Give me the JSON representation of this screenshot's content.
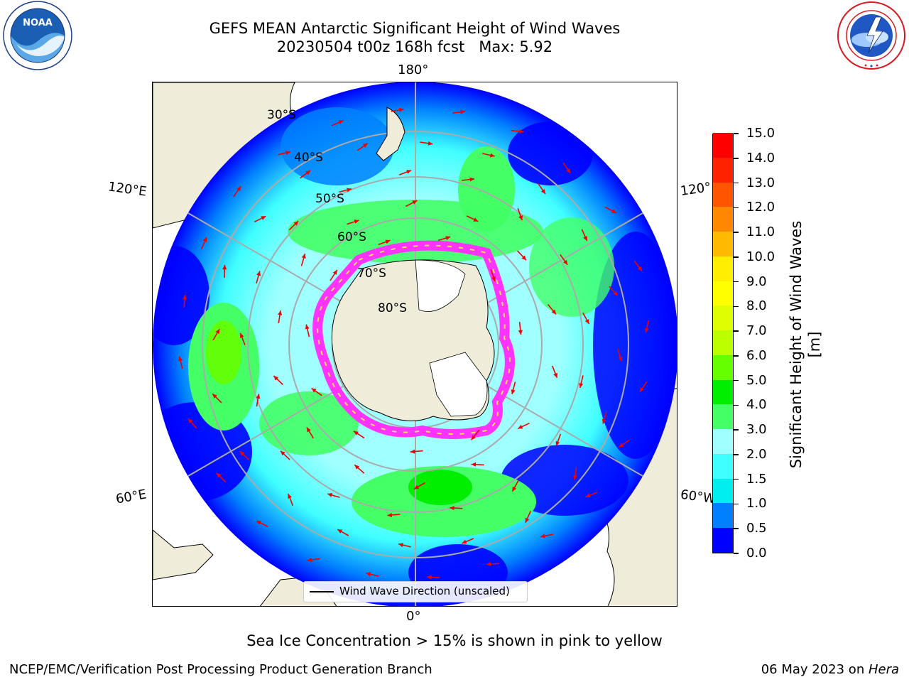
{
  "title": {
    "line1": "GEFS MEAN Antarctic Significant Height of Wind Waves",
    "line2": "20230504 t00z 168h fcst   Max: 5.92"
  },
  "logos": {
    "left": {
      "icon": "noaa-logo",
      "text": "NOAA"
    },
    "right": {
      "icon": "national-weather-service-logo"
    }
  },
  "map": {
    "projection": "south-polar-stereographic",
    "longitude_labels": {
      "top": "180°",
      "bottom": "0°",
      "left_upper": "120°E",
      "left_lower": "60°E",
      "right_upper": "120°",
      "right_lower": "60°W"
    },
    "latitude_labels": [
      "30°S",
      "40°S",
      "50°S",
      "60°S",
      "70°S",
      "80°S"
    ],
    "colors": {
      "land": "#efedd9",
      "ice_pink": "#ff33ff",
      "ice_yellow": "#ffdd55"
    },
    "vector_color": "#ee0000"
  },
  "colorbar": {
    "label": "Significant Height of Wind Waves [m]",
    "ticks": [
      "0.0",
      "0.5",
      "1.0",
      "1.5",
      "2.0",
      "3.0",
      "4.0",
      "5.0",
      "6.0",
      "7.0",
      "8.0",
      "9.0",
      "10.0",
      "11.0",
      "12.0",
      "13.0",
      "14.0",
      "15.0"
    ],
    "colors": [
      "#0000ff",
      "#0080ff",
      "#00eeee",
      "#40ffff",
      "#a0ffff",
      "#44ff66",
      "#00ee00",
      "#66ff00",
      "#bbff00",
      "#ddff00",
      "#ffff00",
      "#ffee00",
      "#ffbb00",
      "#ff8800",
      "#ff5500",
      "#ff2200",
      "#ff0000"
    ]
  },
  "legend": {
    "label": "Wind Wave Direction (unscaled)"
  },
  "note": "Sea Ice Concentration > 15% is shown in pink to yellow",
  "footer": {
    "left": "NCEP/EMC/Verification Post Processing Product Generation Branch",
    "right_date": "06 May 2023 on ",
    "right_machine": "Hera"
  }
}
